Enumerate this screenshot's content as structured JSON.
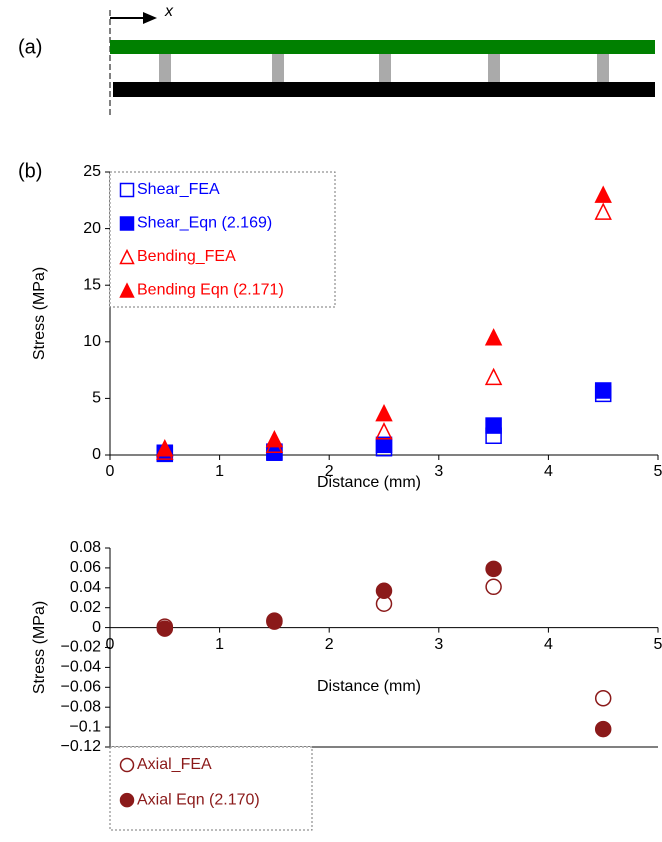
{
  "labels": {
    "panel_a": "(a)",
    "panel_b": "(b)",
    "direction": "x"
  },
  "chart_data": [
    {
      "type": "scatter",
      "x_label": "Distance (mm)",
      "y_label": "Stress (MPa)",
      "x": [
        0.5,
        1.5,
        2.5,
        3.5,
        4.5
      ],
      "xlim": [
        0,
        5
      ],
      "xticks": [
        0,
        1,
        2,
        3,
        4,
        5
      ],
      "ylim": [
        0,
        25
      ],
      "yticks": [
        0,
        5,
        10,
        15,
        20,
        25
      ],
      "legend": "upper left",
      "x_axis_at_zero": false,
      "series": [
        {
          "name": "Shear_FEA",
          "color": "#0000ff",
          "marker": "square",
          "filled": false,
          "values": [
            0.1,
            0.2,
            0.6,
            1.7,
            5.4
          ]
        },
        {
          "name": "Shear_Eqn (2.169)",
          "color": "#0000ff",
          "marker": "square",
          "filled": true,
          "values": [
            0.2,
            0.3,
            0.9,
            2.6,
            5.7
          ]
        },
        {
          "name": "Bending_FEA",
          "color": "#ff0000",
          "marker": "triangle",
          "filled": false,
          "values": [
            0.3,
            0.9,
            2.1,
            6.9,
            21.5
          ]
        },
        {
          "name": "Bending Eqn (2.171)",
          "color": "#ff0000",
          "marker": "triangle",
          "filled": true,
          "values": [
            0.6,
            1.4,
            3.7,
            10.4,
            23.0
          ]
        }
      ]
    },
    {
      "type": "scatter",
      "x_label": "Distance (mm)",
      "y_label": "Stress (MPa)",
      "x": [
        0.5,
        1.5,
        2.5,
        3.5,
        4.5
      ],
      "xlim": [
        0,
        5
      ],
      "xticks": [
        0,
        1,
        2,
        3,
        4,
        5
      ],
      "ylim": [
        -0.12,
        0.08
      ],
      "yticks": [
        0.08,
        0.06,
        0.04,
        0.02,
        0,
        {
          "value": -0.02,
          "label": "−0.02"
        },
        {
          "value": -0.04,
          "label": "−0.04"
        },
        {
          "value": -0.06,
          "label": "−0.06"
        },
        {
          "value": -0.08,
          "label": "−0.08"
        },
        {
          "value": -0.1,
          "label": "−0.1"
        },
        {
          "value": -0.12,
          "label": "−0.12"
        }
      ],
      "legend": "lower left",
      "x_axis_at_zero": true,
      "series": [
        {
          "name": "Axial_FEA",
          "color": "#8b1a1a",
          "marker": "circle",
          "filled": false,
          "values": [
            0.001,
            0.006,
            0.024,
            0.041,
            -0.071
          ]
        },
        {
          "name": "Axial Eqn (2.170)",
          "color": "#8b1a1a",
          "marker": "circle",
          "filled": true,
          "values": [
            -0.001,
            0.007,
            0.037,
            0.059,
            -0.102
          ]
        }
      ]
    }
  ]
}
